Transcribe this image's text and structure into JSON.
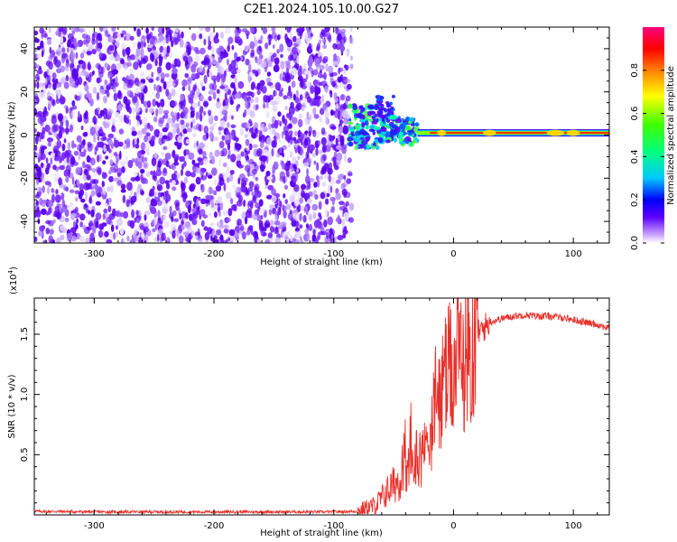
{
  "title": "C2E1.2024.105.10.00.G27",
  "chart_data": [
    {
      "type": "heatmap",
      "title": "C2E1.2024.105.10.00.G27",
      "xlabel": "Height of straight line (km)",
      "ylabel": "Frequency (Hz)",
      "xlim": [
        -350,
        130
      ],
      "ylim": [
        -50,
        50
      ],
      "x_ticks": [
        -300,
        -200,
        -100,
        0,
        100
      ],
      "y_ticks": [
        -40,
        -20,
        0,
        20,
        40
      ],
      "colorbar": {
        "label": "Normalized spectral amplitude",
        "range": [
          0,
          1
        ],
        "ticks": [
          "0.0",
          "0.2",
          "0.4",
          "0.6",
          "0.8"
        ],
        "colors": [
          "#ffffff",
          "#5a00ff",
          "#0000ff",
          "#00c8ff",
          "#00ff80",
          "#40ff00",
          "#ffff00",
          "#ff8000",
          "#ff0000",
          "#ff0080"
        ]
      },
      "description_regions": [
        {
          "x_range": [
            -350,
            -85
          ],
          "freq_range": [
            -50,
            50
          ],
          "amplitude": "0.0-0.2 scattered noise"
        },
        {
          "x_range": [
            -85,
            -30
          ],
          "freq_range": [
            -8,
            18
          ],
          "amplitude": "0.2-0.6 turbulent signal"
        },
        {
          "x_range": [
            -30,
            130
          ],
          "freq_range": [
            -2,
            3
          ],
          "amplitude": "0.8-1.0 narrow carrier line near 1 Hz"
        }
      ]
    },
    {
      "type": "line",
      "xlabel": "Height of straight line (km)",
      "ylabel": "SNR (10 * v/v)",
      "y_scale_label": "(x10",
      "y_scale_exp": "4",
      "xlim": [
        -350,
        130
      ],
      "ylim": [
        0,
        1.8
      ],
      "x_ticks": [
        -300,
        -200,
        -100,
        0,
        100
      ],
      "y_ticks": [
        "0.5",
        "1.0",
        "1.5"
      ],
      "line_color": "#e8302a",
      "series": [
        {
          "x": [
            -350,
            -300,
            -250,
            -200,
            -150,
            -100,
            -80,
            -65,
            -55,
            -45,
            -40,
            -35,
            -30,
            -25,
            -20,
            -15,
            -10,
            -5,
            0,
            5,
            10,
            15,
            20,
            25,
            30,
            40,
            50,
            60,
            70,
            80,
            90,
            100,
            110,
            120,
            130
          ],
          "values": [
            0.03,
            0.025,
            0.025,
            0.025,
            0.025,
            0.025,
            0.03,
            0.08,
            0.2,
            0.3,
            0.35,
            0.4,
            0.5,
            0.5,
            0.65,
            0.9,
            1.0,
            1.15,
            1.25,
            1.3,
            1.35,
            1.4,
            1.5,
            1.55,
            1.6,
            1.63,
            1.65,
            1.66,
            1.65,
            1.65,
            1.64,
            1.62,
            1.6,
            1.58,
            1.55
          ]
        }
      ]
    }
  ]
}
